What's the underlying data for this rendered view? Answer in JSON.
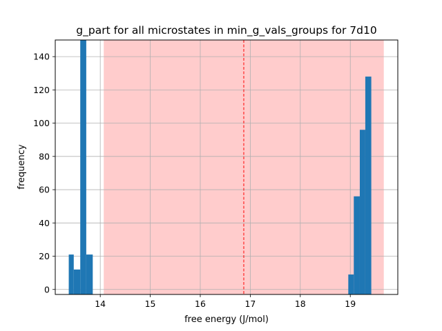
{
  "chart_data": {
    "type": "bar",
    "title": "g_part for all microstates in min_g_vals_groups for 7d10",
    "xlabel": "free energy (J/mol)",
    "ylabel": "frequency",
    "xlim": [
      13.1,
      19.95
    ],
    "ylim": [
      -3,
      150
    ],
    "grid": true,
    "x_ticks": [
      "14",
      "15",
      "16",
      "17",
      "18",
      "19"
    ],
    "y_ticks": [
      "0",
      "20",
      "40",
      "60",
      "80",
      "100",
      "120",
      "140"
    ],
    "highlight_band": {
      "x_start": 14.07,
      "x_end": 19.67,
      "color": "#ff0000",
      "opacity": 0.2
    },
    "vline": {
      "x": 16.87,
      "color": "#ff0000",
      "style": "dashed"
    },
    "bar_color": "#1f77b4",
    "bars": [
      {
        "x0": 13.37,
        "x1": 13.47,
        "value": 21
      },
      {
        "x0": 13.47,
        "x1": 13.6,
        "value": 12
      },
      {
        "x0": 13.6,
        "x1": 13.72,
        "value": 150
      },
      {
        "x0": 13.72,
        "x1": 13.85,
        "value": 21
      },
      {
        "x0": 18.96,
        "x1": 19.07,
        "value": 9
      },
      {
        "x0": 19.07,
        "x1": 19.19,
        "value": 56
      },
      {
        "x0": 19.19,
        "x1": 19.3,
        "value": 96
      },
      {
        "x0": 19.3,
        "x1": 19.42,
        "value": 128
      }
    ]
  }
}
